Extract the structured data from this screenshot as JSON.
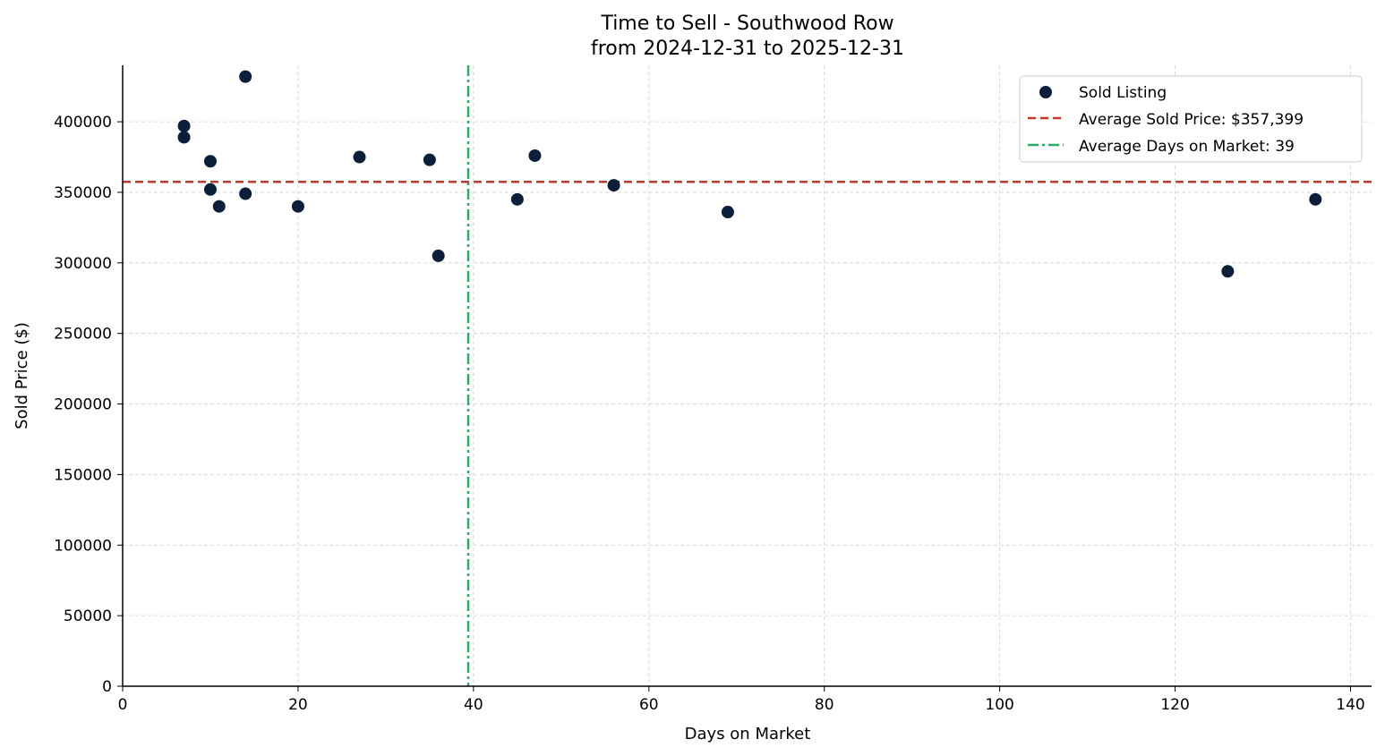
{
  "chart_data": {
    "type": "scatter",
    "title": "Time to Sell - Southwood Row",
    "subtitle": "from 2024-12-31 to 2025-12-31",
    "xlabel": "Days on Market",
    "ylabel": "Sold Price ($)",
    "xlim": [
      0,
      142.4
    ],
    "ylim": [
      0,
      440000
    ],
    "xticks": [
      0,
      20,
      40,
      60,
      80,
      100,
      120,
      140
    ],
    "yticks": [
      0,
      50000,
      100000,
      150000,
      200000,
      250000,
      300000,
      350000,
      400000
    ],
    "grid": true,
    "legend_position": "top-right",
    "legend": [
      "Sold Listing",
      "Average Sold Price: $357,399",
      "Average Days on Market: 39"
    ],
    "colors": {
      "points": "#0b1e3a",
      "avg_price": "#c0392b",
      "avg_days": "#27ae60"
    },
    "avg_price": 357399,
    "avg_days": 39.4,
    "points": [
      {
        "x": 7,
        "y": 397000
      },
      {
        "x": 7,
        "y": 389000
      },
      {
        "x": 10,
        "y": 372000
      },
      {
        "x": 10,
        "y": 352000
      },
      {
        "x": 11,
        "y": 340000
      },
      {
        "x": 14,
        "y": 432000
      },
      {
        "x": 14,
        "y": 349000
      },
      {
        "x": 20,
        "y": 340000
      },
      {
        "x": 27,
        "y": 375000
      },
      {
        "x": 35,
        "y": 373000
      },
      {
        "x": 36,
        "y": 305000
      },
      {
        "x": 45,
        "y": 345000
      },
      {
        "x": 47,
        "y": 376000
      },
      {
        "x": 56,
        "y": 355000
      },
      {
        "x": 69,
        "y": 336000
      },
      {
        "x": 126,
        "y": 294000
      },
      {
        "x": 136,
        "y": 345000
      }
    ]
  }
}
